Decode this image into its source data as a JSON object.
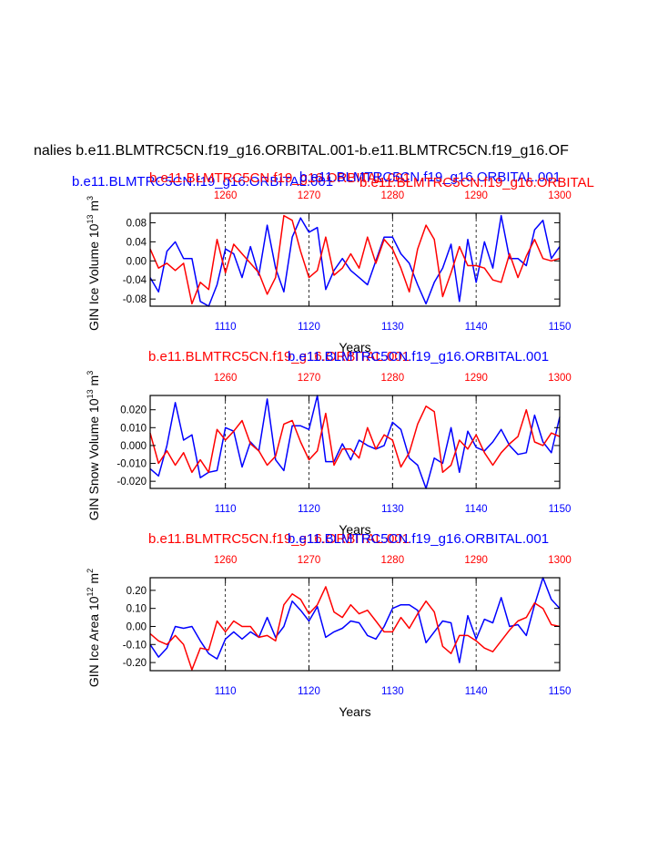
{
  "figure": {
    "main_title": "nalies b.e11.BLMTRC5CN.f19_g16.ORBITAL.001-b.e11.BLMTRC5CN.f19_g16.OF",
    "sub_title_blue": "b.e11.BLMTRC5CN.f19_g16.ORBITAL.001",
    "sub_title_red": "b.e11.BLMTRC5CN.f19_g16.ORBITAL.001",
    "sub_title_blue_2": "b.e11.BLMTRC5CN.f19_g16.ORBITAL.001",
    "sub_title_red_2": "b.e11.BLMTRC5CN.f19_g16.ORBITAL",
    "colors": {
      "blue": "#0000ff",
      "red": "#ff0000",
      "black": "#000000"
    }
  },
  "chart_data": [
    {
      "type": "line",
      "title_red": "b.e11.BLMTRC5CN.f19_g16.ORBITAL.001",
      "title_blue": "b.e11.BLMTRC5CN.f19_g16.ORBITAL.001",
      "ylabel": "GIN Ice Volume 10¹³ m³",
      "ylabel_main": "GIN Ice Volume 10",
      "ylabel_exp": "13",
      "ylabel_unit": "m",
      "ylabel_unit_exp": "3",
      "xlabel": "Years",
      "show_xlabel": true,
      "ylim": [
        -0.095,
        0.1
      ],
      "yticks": [
        -0.08,
        -0.04,
        0.0,
        0.04,
        0.08
      ],
      "ytick_labels": [
        "-0.08",
        "-0.04",
        "0.00",
        "0.04",
        "0.08"
      ],
      "bottom_axis": {
        "range": [
          1101,
          1150
        ],
        "ticks": [
          1110,
          1120,
          1130,
          1140,
          1150
        ],
        "labels": [
          "1110",
          "1120",
          "1130",
          "1140",
          "1150"
        ]
      },
      "top_axis": {
        "range": [
          1251,
          1300
        ],
        "ticks": [
          1260,
          1270,
          1280,
          1290,
          1300
        ],
        "labels": [
          "1260",
          "1270",
          "1280",
          "1290",
          "1300"
        ]
      },
      "series": [
        {
          "name": "b.e11.BLMTRC5CN.f19_g16.ORBITAL.001 (bottom axis)",
          "color": "#0000ff",
          "x": [
            1101,
            1102,
            1103,
            1104,
            1105,
            1106,
            1107,
            1108,
            1109,
            1110,
            1111,
            1112,
            1113,
            1114,
            1115,
            1116,
            1117,
            1118,
            1119,
            1120,
            1121,
            1122,
            1123,
            1124,
            1125,
            1126,
            1127,
            1128,
            1129,
            1130,
            1131,
            1132,
            1133,
            1134,
            1135,
            1136,
            1137,
            1138,
            1139,
            1140,
            1141,
            1142,
            1143,
            1144,
            1145,
            1146,
            1147,
            1148,
            1149,
            1150
          ],
          "values": [
            -0.035,
            -0.065,
            0.02,
            0.04,
            0.005,
            0.005,
            -0.085,
            -0.095,
            -0.05,
            0.025,
            0.015,
            -0.035,
            0.03,
            -0.03,
            0.075,
            -0.015,
            -0.065,
            0.05,
            0.09,
            0.06,
            0.07,
            -0.06,
            -0.02,
            0.005,
            -0.02,
            -0.035,
            -0.05,
            0.0,
            0.05,
            0.05,
            0.015,
            -0.005,
            -0.05,
            -0.09,
            -0.045,
            -0.015,
            0.035,
            -0.085,
            0.045,
            -0.045,
            0.04,
            -0.015,
            0.095,
            0.005,
            0.005,
            -0.01,
            0.065,
            0.085,
            0.005,
            0.03
          ]
        },
        {
          "name": "b.e11.BLMTRC5CN.f19_g16.ORBITAL.001 (top axis)",
          "color": "#ff0000",
          "x": [
            1251,
            1252,
            1253,
            1254,
            1255,
            1256,
            1257,
            1258,
            1259,
            1260,
            1261,
            1262,
            1263,
            1264,
            1265,
            1266,
            1267,
            1268,
            1269,
            1270,
            1271,
            1272,
            1273,
            1274,
            1275,
            1276,
            1277,
            1278,
            1279,
            1280,
            1281,
            1282,
            1283,
            1284,
            1285,
            1286,
            1287,
            1288,
            1289,
            1290,
            1291,
            1292,
            1293,
            1294,
            1295,
            1296,
            1297,
            1298,
            1299,
            1300
          ],
          "values": [
            0.025,
            -0.015,
            -0.005,
            -0.02,
            -0.005,
            -0.09,
            -0.045,
            -0.06,
            0.045,
            -0.025,
            0.035,
            0.015,
            -0.005,
            -0.025,
            -0.07,
            -0.035,
            0.095,
            0.085,
            0.02,
            -0.035,
            -0.02,
            0.05,
            -0.03,
            -0.015,
            0.015,
            -0.015,
            0.05,
            -0.005,
            0.045,
            0.025,
            -0.015,
            -0.065,
            0.025,
            0.075,
            0.045,
            -0.075,
            -0.025,
            0.03,
            -0.01,
            -0.01,
            -0.015,
            -0.04,
            -0.045,
            0.015,
            -0.035,
            0.01,
            0.045,
            0.005,
            0.0,
            0.005
          ]
        }
      ]
    },
    {
      "type": "line",
      "title_red": "b.e11.BLMTRC5CN.f19_g16.ORBITAL.001",
      "title_blue": "b.e11.BLMTRC5CN.f19_g16.ORBITAL.001",
      "ylabel": "GIN Snow Volume 10¹³ m³",
      "ylabel_main": "GIN Snow Volume 10",
      "ylabel_exp": "13",
      "ylabel_unit": "m",
      "ylabel_unit_exp": "3",
      "xlabel": "Years",
      "show_xlabel": true,
      "ylim": [
        -0.024,
        0.028
      ],
      "yticks": [
        -0.02,
        -0.01,
        0.0,
        0.01,
        0.02
      ],
      "ytick_labels": [
        "-0.020",
        "-0.010",
        "0.000",
        "0.010",
        "0.020"
      ],
      "bottom_axis": {
        "range": [
          1101,
          1150
        ],
        "ticks": [
          1110,
          1120,
          1130,
          1140,
          1150
        ],
        "labels": [
          "1110",
          "1120",
          "1130",
          "1140",
          "1150"
        ]
      },
      "top_axis": {
        "range": [
          1251,
          1300
        ],
        "ticks": [
          1260,
          1270,
          1280,
          1290,
          1300
        ],
        "labels": [
          "1260",
          "1270",
          "1280",
          "1290",
          "1300"
        ]
      },
      "series": [
        {
          "name": "b.e11.BLMTRC5CN.f19_g16.ORBITAL.001 (bottom axis)",
          "color": "#0000ff",
          "x": [
            1101,
            1102,
            1103,
            1104,
            1105,
            1106,
            1107,
            1108,
            1109,
            1110,
            1111,
            1112,
            1113,
            1114,
            1115,
            1116,
            1117,
            1118,
            1119,
            1120,
            1121,
            1122,
            1123,
            1124,
            1125,
            1126,
            1127,
            1128,
            1129,
            1130,
            1131,
            1132,
            1133,
            1134,
            1135,
            1136,
            1137,
            1138,
            1139,
            1140,
            1141,
            1142,
            1143,
            1144,
            1145,
            1146,
            1147,
            1148,
            1149,
            1150
          ],
          "values": [
            -0.013,
            -0.017,
            0.0,
            0.024,
            0.003,
            0.006,
            -0.018,
            -0.015,
            -0.014,
            0.01,
            0.008,
            -0.012,
            0.002,
            -0.003,
            0.026,
            -0.008,
            -0.014,
            0.011,
            0.011,
            0.009,
            0.028,
            -0.009,
            -0.009,
            0.001,
            -0.008,
            0.003,
            0.0,
            -0.002,
            0.0,
            0.013,
            0.009,
            -0.007,
            -0.011,
            -0.024,
            -0.007,
            -0.01,
            0.01,
            -0.015,
            0.008,
            -0.001,
            -0.003,
            0.002,
            0.009,
            0.0,
            -0.005,
            -0.004,
            0.017,
            0.002,
            -0.004,
            0.016
          ]
        },
        {
          "name": "b.e11.BLMTRC5CN.f19_g16.ORBITAL.001 (top axis)",
          "color": "#ff0000",
          "x": [
            1251,
            1252,
            1253,
            1254,
            1255,
            1256,
            1257,
            1258,
            1259,
            1260,
            1261,
            1262,
            1263,
            1264,
            1265,
            1266,
            1267,
            1268,
            1269,
            1270,
            1271,
            1272,
            1273,
            1274,
            1275,
            1276,
            1277,
            1278,
            1279,
            1280,
            1281,
            1282,
            1283,
            1284,
            1285,
            1286,
            1287,
            1288,
            1289,
            1290,
            1291,
            1292,
            1293,
            1294,
            1295,
            1296,
            1297,
            1298,
            1299,
            1300
          ],
          "values": [
            0.007,
            -0.01,
            -0.003,
            -0.011,
            -0.004,
            -0.015,
            -0.008,
            -0.015,
            0.009,
            0.003,
            0.008,
            0.014,
            0.001,
            -0.003,
            -0.011,
            -0.006,
            0.012,
            0.014,
            0.002,
            -0.008,
            -0.003,
            0.018,
            -0.011,
            -0.002,
            -0.002,
            -0.007,
            0.01,
            -0.002,
            0.006,
            0.003,
            -0.012,
            -0.004,
            0.012,
            0.022,
            0.019,
            -0.015,
            -0.011,
            0.003,
            -0.002,
            0.006,
            -0.004,
            -0.011,
            -0.004,
            0.001,
            0.005,
            0.02,
            0.002,
            0.0,
            0.007,
            0.005
          ]
        }
      ]
    },
    {
      "type": "line",
      "title_red": "b.e11.BLMTRC5CN.f19_g16.ORBITAL.001",
      "title_blue": "b.e11.BLMTRC5CN.f19_g16.ORBITAL.001",
      "ylabel": "GIN Ice Area 10¹² m²",
      "ylabel_main": "GIN Ice Area 10",
      "ylabel_exp": "12",
      "ylabel_unit": "m",
      "ylabel_unit_exp": "2",
      "xlabel": "Years",
      "show_xlabel": true,
      "ylim": [
        -0.245,
        0.27
      ],
      "yticks": [
        -0.2,
        -0.1,
        0.0,
        0.1,
        0.2
      ],
      "ytick_labels": [
        "-0.20",
        "-0.10",
        "0.00",
        "0.10",
        "0.20"
      ],
      "bottom_axis": {
        "range": [
          1101,
          1150
        ],
        "ticks": [
          1110,
          1120,
          1130,
          1140,
          1150
        ],
        "labels": [
          "1110",
          "1120",
          "1130",
          "1140",
          "1150"
        ]
      },
      "top_axis": {
        "range": [
          1251,
          1300
        ],
        "ticks": [
          1260,
          1270,
          1280,
          1290,
          1300
        ],
        "labels": [
          "1260",
          "1270",
          "1280",
          "1290",
          "1300"
        ]
      },
      "series": [
        {
          "name": "b.e11.BLMTRC5CN.f19_g16.ORBITAL.001 (bottom axis)",
          "color": "#0000ff",
          "x": [
            1101,
            1102,
            1103,
            1104,
            1105,
            1106,
            1107,
            1108,
            1109,
            1110,
            1111,
            1112,
            1113,
            1114,
            1115,
            1116,
            1117,
            1118,
            1119,
            1120,
            1121,
            1122,
            1123,
            1124,
            1125,
            1126,
            1127,
            1128,
            1129,
            1130,
            1131,
            1132,
            1133,
            1134,
            1135,
            1136,
            1137,
            1138,
            1139,
            1140,
            1141,
            1142,
            1143,
            1144,
            1145,
            1146,
            1147,
            1148,
            1149,
            1150
          ],
          "values": [
            -0.1,
            -0.17,
            -0.12,
            0.0,
            -0.01,
            0.0,
            -0.08,
            -0.15,
            -0.18,
            -0.07,
            -0.03,
            -0.07,
            -0.03,
            -0.06,
            0.05,
            -0.06,
            0.0,
            0.14,
            0.09,
            0.03,
            0.11,
            -0.06,
            -0.03,
            -0.01,
            0.03,
            0.02,
            -0.05,
            -0.07,
            0.0,
            0.1,
            0.12,
            0.12,
            0.09,
            -0.09,
            -0.03,
            0.03,
            0.02,
            -0.2,
            0.06,
            -0.07,
            0.04,
            0.02,
            0.16,
            0.0,
            0.01,
            -0.05,
            0.12,
            0.27,
            0.15,
            0.1
          ]
        },
        {
          "name": "b.e11.BLMTRC5CN.f19_g16.ORBITAL.001 (top axis)",
          "color": "#ff0000",
          "x": [
            1251,
            1252,
            1253,
            1254,
            1255,
            1256,
            1257,
            1258,
            1259,
            1260,
            1261,
            1262,
            1263,
            1264,
            1265,
            1266,
            1267,
            1268,
            1269,
            1270,
            1271,
            1272,
            1273,
            1274,
            1275,
            1276,
            1277,
            1278,
            1279,
            1280,
            1281,
            1282,
            1283,
            1284,
            1285,
            1286,
            1287,
            1288,
            1289,
            1290,
            1291,
            1292,
            1293,
            1294,
            1295,
            1296,
            1297,
            1298,
            1299,
            1300
          ],
          "values": [
            -0.04,
            -0.08,
            -0.1,
            -0.05,
            -0.1,
            -0.24,
            -0.12,
            -0.13,
            0.03,
            -0.03,
            0.03,
            0.0,
            0.0,
            -0.06,
            -0.05,
            -0.08,
            0.12,
            0.18,
            0.15,
            0.07,
            0.12,
            0.22,
            0.08,
            0.05,
            0.12,
            0.07,
            0.09,
            0.03,
            -0.03,
            -0.03,
            0.05,
            -0.01,
            0.07,
            0.14,
            0.08,
            -0.11,
            -0.15,
            -0.05,
            -0.05,
            -0.08,
            -0.12,
            -0.14,
            -0.08,
            -0.02,
            0.03,
            0.05,
            0.13,
            0.1,
            0.01,
            0.0
          ]
        }
      ]
    }
  ]
}
